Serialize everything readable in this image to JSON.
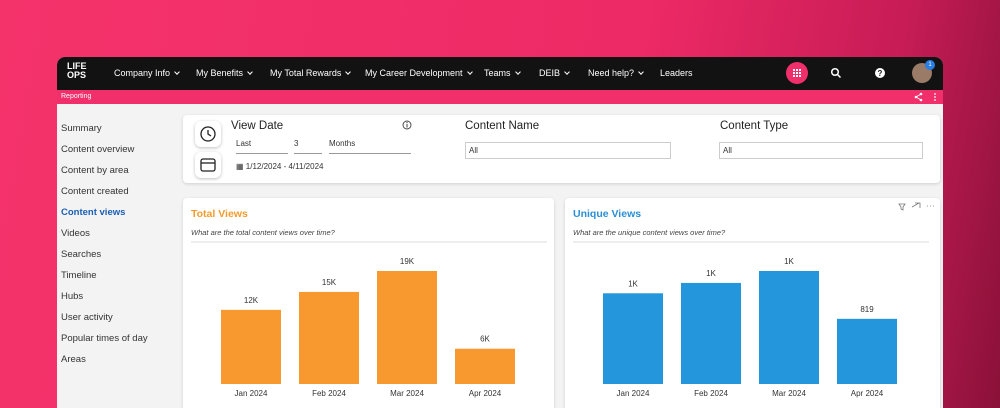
{
  "nav": {
    "logo": [
      "LIFE",
      "OPS"
    ],
    "items": [
      "Company Info",
      "My Benefits",
      "My Total Rewards",
      "My Career Development",
      "Teams",
      "DEIB",
      "Need help?",
      "Leaders"
    ],
    "badge": "1"
  },
  "breadcrumb": "Reporting",
  "sidebar": {
    "items": [
      "Summary",
      "Content overview",
      "Content by area",
      "Content created",
      "Content views",
      "Videos",
      "Searches",
      "Timeline",
      "Hubs",
      "User activity",
      "Popular times of day",
      "Areas"
    ],
    "active": 4
  },
  "filters": {
    "view_date": {
      "label": "View Date",
      "period": "Last",
      "count": "3",
      "unit": "Months",
      "range": "1/12/2024 - 4/11/2024"
    },
    "content_name": {
      "label": "Content Name",
      "value": "All"
    },
    "content_type": {
      "label": "Content Type",
      "value": "All"
    }
  },
  "chart_data": [
    {
      "type": "bar",
      "title": "Total Views",
      "subtitle": "What are the total content views over time?",
      "title_color": "#f39c2b",
      "categories": [
        "Jan 2024",
        "Feb 2024",
        "Mar 2024",
        "Apr 2024"
      ],
      "values": [
        12400,
        15400,
        18900,
        5900
      ],
      "value_labels": [
        "12K",
        "15K",
        "19K",
        "6K"
      ],
      "color": "#f7992f"
    },
    {
      "type": "bar",
      "title": "Unique Views",
      "subtitle": "What are the unique content views over time?",
      "title_color": "#2a8fd6",
      "categories": [
        "Jan 2024",
        "Feb 2024",
        "Mar 2024",
        "Apr 2024"
      ],
      "values": [
        1140,
        1270,
        1420,
        819
      ],
      "value_labels": [
        "1K",
        "1K",
        "1K",
        "819"
      ],
      "color": "#2497dc"
    }
  ]
}
